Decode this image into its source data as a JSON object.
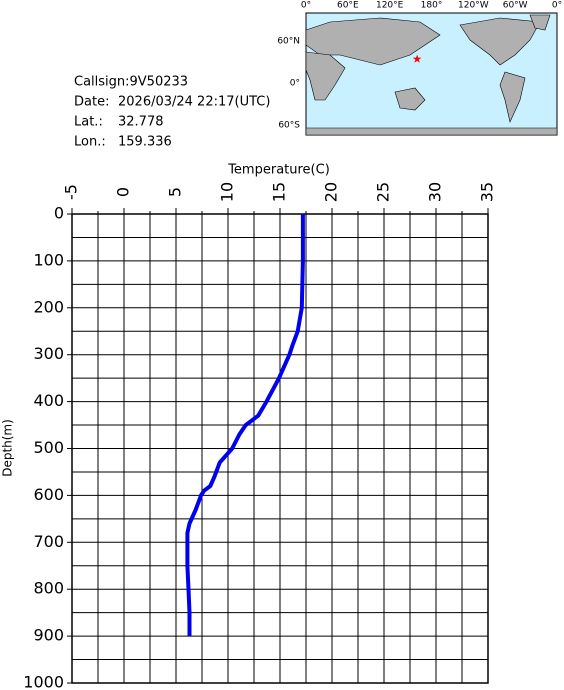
{
  "info": {
    "callsign": "Callsign:9V50233",
    "date_label": "Date:",
    "date": "2026/03/24 22:17(UTC)",
    "lat_label": "Lat.:",
    "lat": 32.778,
    "lon_label": "Lon.:",
    "lon": 159.336
  },
  "map": {
    "lon_labels": [
      "0°",
      "60°E",
      "120°E",
      "180°",
      "120°W",
      "60°W",
      "0°"
    ],
    "lat_labels": [
      "60°N",
      "0°",
      "60°S"
    ],
    "marker_color": "#ff0000"
  },
  "chart_data": {
    "type": "line",
    "xlabel": "Temperature(C)",
    "ylabel": "Depth(m)",
    "color": "#0000ee",
    "xlim": [
      -5,
      35
    ],
    "xticks": [
      -5,
      0,
      5,
      10,
      15,
      20,
      25,
      30,
      35
    ],
    "ylim": [
      0,
      1000
    ],
    "yticks": [
      0,
      100,
      200,
      300,
      400,
      500,
      600,
      700,
      800,
      900,
      1000
    ],
    "y_inverted": true,
    "grid": true,
    "y": [
      0,
      100,
      200,
      250,
      280,
      300,
      350,
      400,
      430,
      450,
      470,
      500,
      530,
      560,
      580,
      590,
      600,
      630,
      660,
      680,
      700,
      750,
      800,
      850,
      900
    ],
    "values": [
      17.2,
      17.2,
      17.1,
      16.7,
      16.2,
      15.9,
      14.9,
      13.7,
      12.9,
      11.7,
      11.1,
      10.4,
      9.2,
      8.7,
      8.3,
      7.7,
      7.4,
      6.9,
      6.3,
      6.1,
      6.1,
      6.1,
      6.2,
      6.3,
      6.3
    ]
  }
}
